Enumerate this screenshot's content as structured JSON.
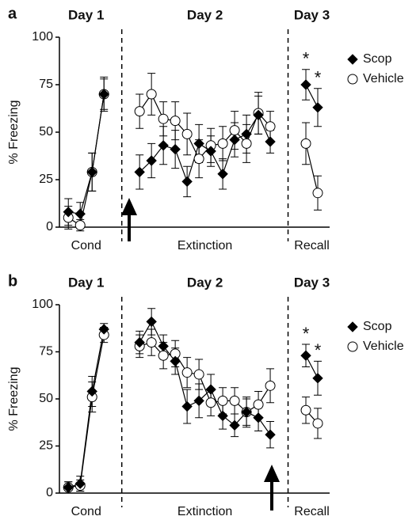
{
  "chart_data": [
    {
      "type": "line",
      "panel": "a",
      "ylabel": "% Freezing",
      "phases": [
        {
          "day": "Day 1",
          "label": "Cond"
        },
        {
          "day": "Day 2",
          "label": "Extinction"
        },
        {
          "day": "Day 3",
          "label": "Recall"
        }
      ],
      "x": [
        1,
        2,
        3,
        4,
        5.5,
        7,
        8,
        9,
        10,
        11,
        12,
        13,
        14,
        15,
        16,
        17,
        18,
        19.5,
        21,
        22
      ],
      "xlim": [
        0.25,
        23
      ],
      "ylim": [
        0,
        100
      ],
      "yticks": [
        0,
        25,
        50,
        75,
        100
      ],
      "series": [
        {
          "name": "Vehicle",
          "marker": "circle",
          "color": "#ffffff",
          "values": [
            5,
            1,
            29,
            70,
            null,
            61,
            70,
            57,
            56,
            49,
            36,
            43,
            44,
            51,
            44,
            60,
            53,
            null,
            44,
            18
          ],
          "errors": [
            6,
            3,
            10,
            9,
            null,
            9,
            11,
            9,
            10,
            11,
            10,
            9,
            9,
            10,
            10,
            11,
            8,
            null,
            11,
            9
          ]
        },
        {
          "name": "Scop",
          "marker": "diamond",
          "color": "#000000",
          "values": [
            8,
            7,
            29,
            70,
            null,
            29,
            35,
            43,
            41,
            24,
            44,
            40,
            28,
            46,
            49,
            59,
            45,
            null,
            75,
            63
          ],
          "errors": [
            7,
            6,
            10,
            8,
            null,
            9,
            9,
            10,
            10,
            8,
            10,
            8,
            8,
            9,
            10,
            10,
            6,
            null,
            8,
            10
          ],
          "significance": [
            null,
            null,
            null,
            null,
            null,
            null,
            null,
            null,
            null,
            null,
            null,
            null,
            null,
            null,
            null,
            null,
            null,
            null,
            "*",
            "*"
          ]
        }
      ]
    },
    {
      "type": "line",
      "panel": "b",
      "ylabel": "% Freezing",
      "phases": [
        {
          "day": "Day 1",
          "label": "Cond"
        },
        {
          "day": "Day 2",
          "label": "Extinction"
        },
        {
          "day": "Day 3",
          "label": "Recall"
        }
      ],
      "x": [
        1,
        2,
        3,
        4,
        5.5,
        7,
        8,
        9,
        10,
        11,
        12,
        13,
        14,
        15,
        16,
        17,
        18,
        19.5,
        21,
        22
      ],
      "xlim": [
        0.25,
        23
      ],
      "ylim": [
        0,
        100
      ],
      "yticks": [
        0,
        25,
        50,
        75,
        100
      ],
      "series": [
        {
          "name": "Vehicle",
          "marker": "circle",
          "color": "#ffffff",
          "values": [
            3,
            4,
            51,
            84,
            null,
            78,
            80,
            73,
            74,
            64,
            63,
            48,
            49,
            49,
            43,
            47,
            57,
            null,
            44,
            37
          ],
          "errors": [
            3,
            3,
            8,
            4,
            null,
            6,
            7,
            7,
            7,
            8,
            8,
            7,
            7,
            7,
            7,
            7,
            9,
            null,
            7,
            8
          ]
        },
        {
          "name": "Scop",
          "marker": "diamond",
          "color": "#000000",
          "values": [
            3,
            5,
            54,
            87,
            null,
            80,
            91,
            78,
            70,
            46,
            49,
            55,
            41,
            36,
            43,
            40,
            31,
            null,
            73,
            61
          ],
          "errors": [
            3,
            4,
            8,
            3,
            null,
            6,
            7,
            6,
            7,
            9,
            9,
            8,
            7,
            6,
            8,
            7,
            7,
            null,
            6,
            9
          ],
          "significance": [
            null,
            null,
            null,
            null,
            null,
            null,
            null,
            null,
            null,
            null,
            null,
            null,
            null,
            null,
            null,
            null,
            null,
            null,
            "*",
            "*"
          ]
        }
      ]
    }
  ]
}
